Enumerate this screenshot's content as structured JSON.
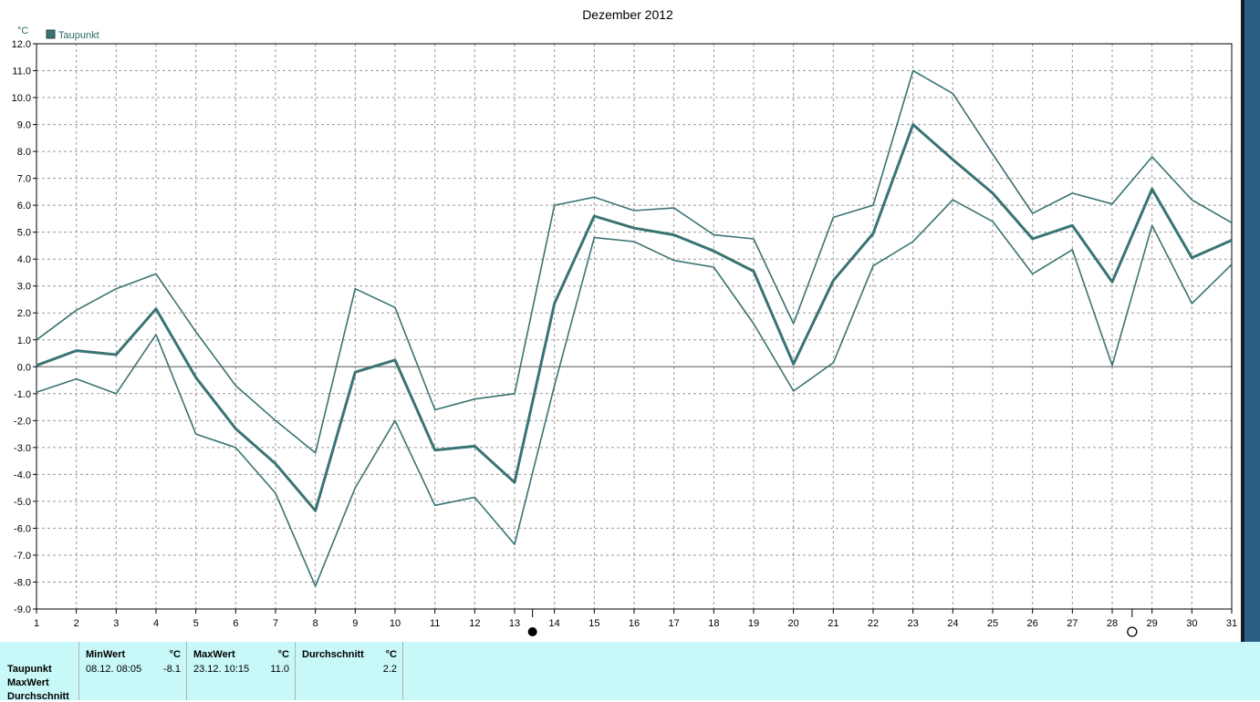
{
  "chart_data": {
    "type": "line",
    "title": "Dezember 2012",
    "unit_label": "°C",
    "legend": [
      "Taupunkt"
    ],
    "legend_position": "top-left",
    "grid": true,
    "x": [
      1,
      2,
      3,
      4,
      5,
      6,
      7,
      8,
      9,
      10,
      11,
      12,
      13,
      14,
      15,
      16,
      17,
      18,
      19,
      20,
      21,
      22,
      23,
      24,
      25,
      26,
      27,
      28,
      29,
      30,
      31
    ],
    "xlim": [
      1,
      31
    ],
    "ylim": [
      -9.0,
      12.0
    ],
    "y_ticks": [
      "12.0",
      "11.0",
      "10.0",
      "9.0",
      "8.0",
      "7.0",
      "6.0",
      "5.0",
      "4.0",
      "3.0",
      "2.0",
      "1.0",
      "0.0",
      "-1.0",
      "-2.0",
      "-3.0",
      "-4.0",
      "-5.0",
      "-6.0",
      "-7.0",
      "-8.0",
      "-9.0"
    ],
    "series": [
      {
        "role": "max",
        "values": [
          1.0,
          2.1,
          2.9,
          3.45,
          1.3,
          -0.7,
          -2.0,
          -3.2,
          2.9,
          2.2,
          -1.6,
          -1.2,
          -1.0,
          6.0,
          6.3,
          5.8,
          5.9,
          4.9,
          4.75,
          1.6,
          5.55,
          6.0,
          11.0,
          10.15,
          7.9,
          5.7,
          6.45,
          6.05,
          7.8,
          6.2,
          5.35
        ]
      },
      {
        "role": "avg",
        "values": [
          0.05,
          0.6,
          0.45,
          2.15,
          -0.4,
          -2.3,
          -3.6,
          -5.35,
          -0.2,
          0.25,
          -3.1,
          -2.95,
          -4.3,
          2.35,
          5.6,
          5.15,
          4.9,
          4.3,
          3.55,
          0.1,
          3.2,
          4.95,
          9.0,
          7.7,
          6.45,
          4.75,
          5.25,
          3.15,
          6.6,
          4.05,
          4.7
        ]
      },
      {
        "role": "min",
        "values": [
          -0.95,
          -0.45,
          -1.0,
          1.2,
          -2.5,
          -3.0,
          -4.7,
          -8.15,
          -4.5,
          -2.0,
          -5.15,
          -4.85,
          -6.6,
          -0.7,
          4.8,
          4.65,
          3.95,
          3.7,
          1.6,
          -0.9,
          0.15,
          3.75,
          4.65,
          6.2,
          5.4,
          3.45,
          4.35,
          0.05,
          5.25,
          2.35,
          3.8
        ]
      }
    ],
    "markers": [
      {
        "x": 13.45,
        "symbol": "new-moon"
      },
      {
        "x": 28.5,
        "symbol": "full-moon"
      }
    ],
    "line_color": "#3a7373",
    "zero_line_color": "#777777"
  },
  "footer": {
    "row_labels": [
      "Taupunkt",
      "MaxWert",
      "Durchschnitt"
    ],
    "min_header": "MinWert",
    "max_header": "MaxWert",
    "avg_header": "Durchschnitt",
    "unit": "°C",
    "min_datetime": "08.12.  08:05",
    "min_value": "-8.1",
    "max_datetime": "23.12.  10:15",
    "max_value": "11.0",
    "avg_value": "2.2"
  }
}
